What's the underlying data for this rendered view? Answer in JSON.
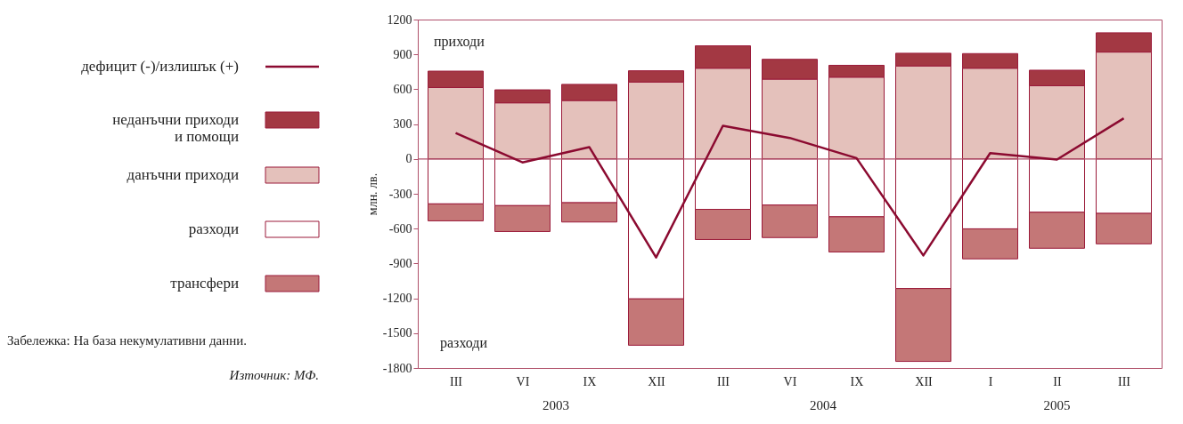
{
  "chart_data": {
    "type": "bar",
    "stacked": true,
    "ylabel": "млн. лв.",
    "categories": [
      "III",
      "VI",
      "IX",
      "XII",
      "III",
      "VI",
      "IX",
      "XII",
      "I",
      "II",
      "III"
    ],
    "series": [
      {
        "name": "дефицит (-)/излишък (+)",
        "type": "line",
        "color": "#8b0a30",
        "values": [
          223,
          -30,
          102,
          -848,
          285,
          181,
          7,
          -831,
          50,
          -5,
          350
        ]
      },
      {
        "name": "данъчни приходи",
        "color": "#e4c1bb",
        "values": [
          615,
          483,
          503,
          662,
          781,
          687,
          704,
          801,
          781,
          630,
          920
        ]
      },
      {
        "name": "неданъчни приходи\nи помощи",
        "color": "#a33843",
        "values": [
          141,
          112,
          139,
          97,
          193,
          171,
          102,
          109,
          126,
          134,
          166
        ]
      },
      {
        "name": "разходи",
        "color": "#ffffff",
        "values": [
          -387,
          -402,
          -377,
          -1205,
          -434,
          -397,
          -498,
          -1116,
          -602,
          -459,
          -469
        ]
      },
      {
        "name": "трансфери",
        "color": "#c47777",
        "values": [
          -146,
          -223,
          -166,
          -399,
          -260,
          -280,
          -303,
          -627,
          -258,
          -310,
          -262
        ]
      }
    ],
    "ylim": [
      -1800,
      1200
    ],
    "yticks": [
      -1800,
      -1500,
      -1200,
      -900,
      -600,
      -300,
      0,
      300,
      600,
      900,
      1200
    ],
    "grid": false,
    "legend": "left",
    "line_style": "solid",
    "ref_lines": [
      {
        "axis": "y",
        "value": 0,
        "color": "#b0506a"
      }
    ],
    "annotations": [
      "2003",
      "2004",
      "2005",
      "приходи",
      "разходи",
      "Забележка: На база некумулативни данни.",
      "Източник: МФ."
    ]
  }
}
